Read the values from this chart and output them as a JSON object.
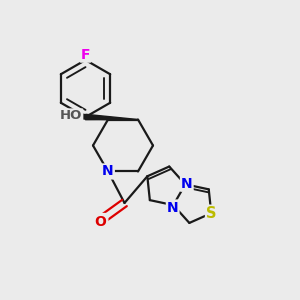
{
  "bg_color": "#ebebeb",
  "atom_colors": {
    "C": "#1a1a1a",
    "N": "#0000ee",
    "O": "#dd0000",
    "S": "#bbbb00",
    "F": "#ee00ee",
    "H": "#555555"
  },
  "bond_color": "#1a1a1a",
  "bond_width": 1.6,
  "font_size": 9.5,
  "fig_width": 3.0,
  "fig_height": 3.0,
  "dpi": 100,
  "xlim": [
    0,
    10
  ],
  "ylim": [
    0,
    10
  ]
}
